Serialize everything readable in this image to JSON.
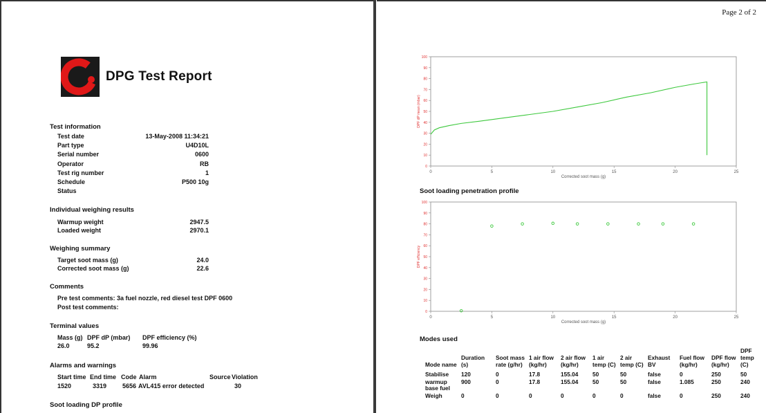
{
  "report": {
    "title": "DPG Test Report",
    "logo_letter": "C"
  },
  "test_information": {
    "heading": "Test information",
    "rows": [
      {
        "label": "Test date",
        "value": "13-May-2008 11:34:21"
      },
      {
        "label": "Part type",
        "value": "U4D10L"
      },
      {
        "label": "Serial number",
        "value": "0600"
      },
      {
        "label": "Operator",
        "value": "RB"
      },
      {
        "label": "Test rig number",
        "value": "1"
      },
      {
        "label": "Schedule",
        "value": "P500 10g"
      },
      {
        "label": "Status",
        "value": ""
      }
    ]
  },
  "weighing_results": {
    "heading": "Individual weighing results",
    "rows": [
      {
        "label": "Warmup weight",
        "value": "2947.5"
      },
      {
        "label": "Loaded weight",
        "value": "2970.1"
      }
    ]
  },
  "weighing_summary": {
    "heading": "Weighing summary",
    "rows": [
      {
        "label": "Target soot mass (g)",
        "value": "24.0"
      },
      {
        "label": "Corrected soot mass (g)",
        "value": "22.6"
      }
    ]
  },
  "comments": {
    "heading": "Comments",
    "pre": "Pre test comments: 3a fuel nozzle, red diesel test DPF 0600",
    "post": "Post test comments:"
  },
  "terminal_values": {
    "heading": "Terminal values",
    "headers": [
      "Mass (g)",
      "DPF dP (mbar)",
      "DPF efficiency (%)"
    ],
    "values": [
      "26.0",
      "95.2",
      "99.96"
    ]
  },
  "alarms": {
    "heading": "Alarms and warnings",
    "headers": [
      "Start time",
      "End time",
      "Code",
      "Alarm",
      "Source",
      "Violation"
    ],
    "row": [
      "1520",
      "3319",
      "5656",
      "AVL415 error detected",
      "",
      "30"
    ]
  },
  "soot_dp_heading": "Soot loading DP profile",
  "page_number": "Page 2 of 2",
  "penetration_heading": "Soot loading penetration profile",
  "chart_data": [
    {
      "type": "line",
      "title": "",
      "xlabel": "Corrected soot mass (g)",
      "ylabel": "DPF dP mean (mbar)",
      "xlim": [
        0,
        25
      ],
      "ylim": [
        0,
        100
      ],
      "x_ticks": [
        0,
        5,
        10,
        15,
        20,
        25
      ],
      "y_ticks": [
        0,
        10,
        20,
        30,
        40,
        50,
        60,
        70,
        80,
        90,
        100
      ],
      "grid": false,
      "color": "#3cc83c",
      "x": [
        0,
        0.3,
        0.7,
        1.5,
        2.5,
        4,
        6,
        8,
        10,
        12,
        14,
        16,
        18,
        20,
        21.5,
        22.6,
        22.6
      ],
      "y": [
        29,
        33,
        35,
        37,
        39,
        41,
        44,
        47,
        50,
        54,
        58,
        63,
        67,
        72,
        75,
        77,
        10
      ]
    },
    {
      "type": "scatter",
      "title": "",
      "xlabel": "Corrected soot mass (g)",
      "ylabel": "DPF efficiency",
      "xlim": [
        0,
        25
      ],
      "ylim": [
        0,
        100
      ],
      "x_ticks": [
        0,
        5,
        10,
        15,
        20,
        25
      ],
      "y_ticks": [
        0,
        10,
        20,
        30,
        40,
        50,
        60,
        70,
        80,
        90,
        100
      ],
      "grid": false,
      "color": "#3cc83c",
      "x": [
        2.5,
        5,
        7.5,
        10,
        12,
        14.5,
        17,
        19,
        21.5
      ],
      "y": [
        0.5,
        78,
        80,
        80.5,
        80,
        80,
        80,
        80,
        80
      ]
    }
  ],
  "modes_used": {
    "heading": "Modes used",
    "headers": [
      "Mode name",
      "Duration (s)",
      "Soot mass rate (g/hr)",
      "1 air flow (kg/hr)",
      "2 air flow (kg/hr)",
      "1 air temp (C)",
      "2 air temp (C)",
      "Exhaust BV",
      "Fuel flow (kg/hr)",
      "DPF flow (kg/hr)",
      "DPF temp (C)"
    ],
    "rows": [
      [
        "Stabilise",
        "120",
        "0",
        "17.8",
        "155.04",
        "50",
        "50",
        "false",
        "0",
        "250",
        "50"
      ],
      [
        "warmup base fuel",
        "900",
        "0",
        "17.8",
        "155.04",
        "50",
        "50",
        "false",
        "1.085",
        "250",
        "240"
      ],
      [
        "Weigh",
        "0",
        "0",
        "0",
        "0",
        "0",
        "0",
        "false",
        "0",
        "250",
        "240"
      ]
    ]
  }
}
